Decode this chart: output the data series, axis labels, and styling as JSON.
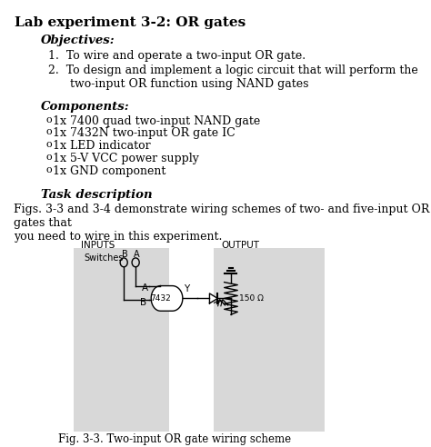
{
  "title": "Lab experiment 3-2: OR gates",
  "objectives_label": "Objectives:",
  "objectives": [
    "To wire and operate a two-input OR gate.",
    "To design and implement a logic circuit that will perform the\ntwo-input OR function using NAND gates"
  ],
  "components_label": "Components:",
  "components": [
    "1x 7400 quad two-input NAND gate",
    "1x 7432N two-input OR gate IC",
    "1x LED indicator",
    "1x 5-V VCC power supply",
    "1x GND component"
  ],
  "task_label": "Task description",
  "task_text": "Figs. 3-3 and 3-4 demonstrate wiring schemes of two- and five-input OR gates that\nyou need to wire in this experiment.",
  "fig_caption": "Fig. 3-3. Two-input OR gate wiring scheme",
  "bg_color": "#ffffff",
  "diagram_bg": "#e8e8e8",
  "inputs_label": "INPUTS",
  "output_label": "OUTPUT"
}
